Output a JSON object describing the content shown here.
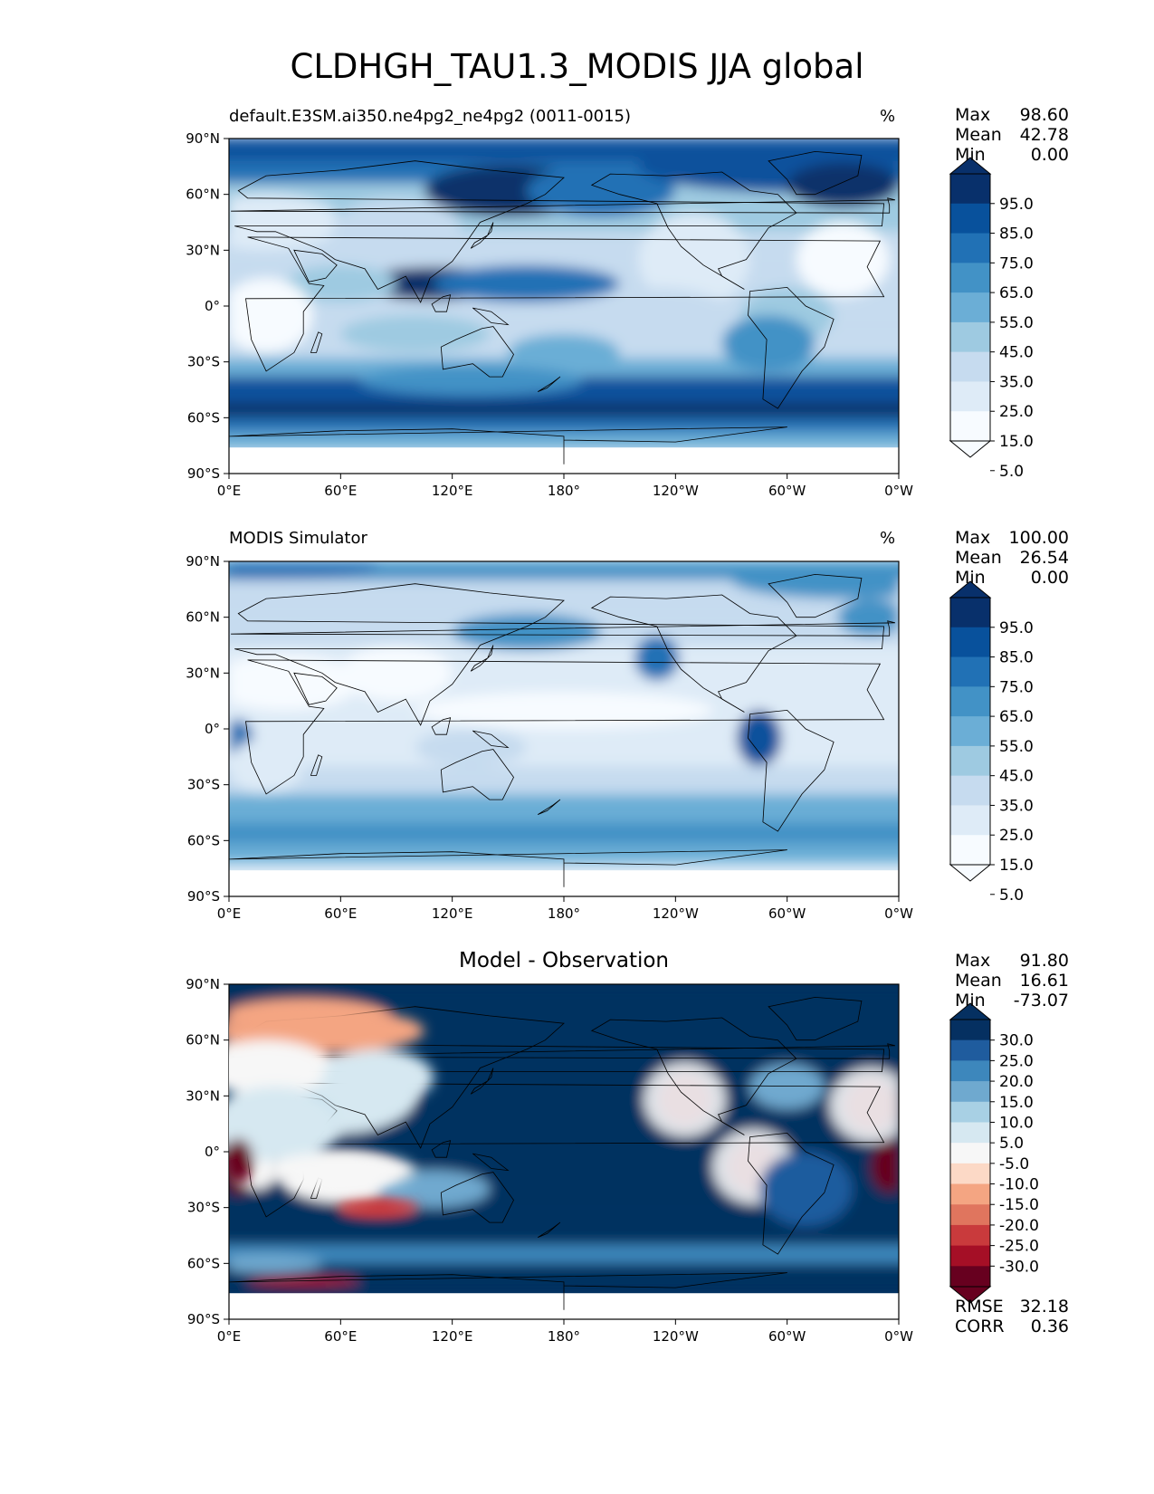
{
  "title": "CLDHGH_TAU1.3_MODIS JJA global",
  "panels": [
    {
      "left_title": "default.E3SM.ai350.ne4pg2_ne4pg2 (0011-0015)",
      "right_title": "%",
      "center_title": "",
      "stats": [
        {
          "label": "Max",
          "value": "98.60"
        },
        {
          "label": "Mean",
          "value": "42.78"
        },
        {
          "label": "Min",
          "value": "0.00"
        }
      ],
      "colorbar": {
        "labels": [
          "95.0",
          "85.0",
          "75.0",
          "65.0",
          "55.0",
          "45.0",
          "35.0",
          "25.0",
          "15.0",
          "5.0"
        ],
        "colors": [
          "#f7fbff",
          "#deebf7",
          "#c6dbef",
          "#9ecae1",
          "#6baed6",
          "#4292c6",
          "#2171b5",
          "#08519c",
          "#08306b"
        ]
      }
    },
    {
      "left_title": "MODIS Simulator",
      "right_title": "%",
      "center_title": "",
      "stats": [
        {
          "label": "Max",
          "value": "100.00"
        },
        {
          "label": "Mean",
          "value": "26.54"
        },
        {
          "label": "Min",
          "value": "0.00"
        }
      ],
      "colorbar": {
        "labels": [
          "95.0",
          "85.0",
          "75.0",
          "65.0",
          "55.0",
          "45.0",
          "35.0",
          "25.0",
          "15.0",
          "5.0"
        ],
        "colors": [
          "#f7fbff",
          "#deebf7",
          "#c6dbef",
          "#9ecae1",
          "#6baed6",
          "#4292c6",
          "#2171b5",
          "#08519c",
          "#08306b"
        ]
      }
    },
    {
      "left_title": "",
      "right_title": "",
      "center_title": "Model - Observation",
      "stats": [
        {
          "label": "Max",
          "value": "91.80"
        },
        {
          "label": "Mean",
          "value": "16.61"
        },
        {
          "label": "Min",
          "value": "-73.07"
        }
      ],
      "extra_stats": [
        {
          "label": "RMSE",
          "value": "32.18"
        },
        {
          "label": "CORR",
          "value": "0.36"
        }
      ],
      "colorbar": {
        "labels": [
          "30.0",
          "25.0",
          "20.0",
          "15.0",
          "10.0",
          "5.0",
          "-5.0",
          "-10.0",
          "-15.0",
          "-20.0",
          "-25.0",
          "-30.0"
        ],
        "colors": [
          "#67001f",
          "#a50f26",
          "#c93a3c",
          "#e0755e",
          "#f4a582",
          "#fcd9c6",
          "#f7f7f7",
          "#d6e8f1",
          "#a8d0e4",
          "#6fa9cf",
          "#3d87bc",
          "#1f5c9e",
          "#053061"
        ]
      }
    }
  ],
  "axes": {
    "yticks": [
      "90°N",
      "60°N",
      "30°N",
      "0°",
      "30°S",
      "60°S",
      "90°S"
    ],
    "xticks": [
      "0°E",
      "60°E",
      "120°E",
      "180°",
      "120°W",
      "60°W",
      "0°W"
    ]
  },
  "chart_data": [
    {
      "type": "heatmap",
      "title": "default.E3SM.ai350.ne4pg2_ne4pg2 (0011-0015)",
      "units": "%",
      "x": [
        0,
        60,
        120,
        180,
        240,
        300,
        360
      ],
      "y": [
        90,
        60,
        30,
        0,
        -30,
        -60,
        -90
      ],
      "levels": [
        5,
        15,
        25,
        35,
        45,
        55,
        65,
        75,
        85,
        95
      ],
      "max": 98.6,
      "mean": 42.78,
      "min": 0.0
    },
    {
      "type": "heatmap",
      "title": "MODIS Simulator",
      "units": "%",
      "levels": [
        5,
        15,
        25,
        35,
        45,
        55,
        65,
        75,
        85,
        95
      ],
      "max": 100.0,
      "mean": 26.54,
      "min": 0.0
    },
    {
      "type": "heatmap",
      "title": "Model - Observation",
      "levels": [
        -30,
        -25,
        -20,
        -15,
        -10,
        -5,
        5,
        10,
        15,
        20,
        25,
        30
      ],
      "max": 91.8,
      "mean": 16.61,
      "min": -73.07,
      "rmse": 32.18,
      "corr": 0.36
    }
  ]
}
